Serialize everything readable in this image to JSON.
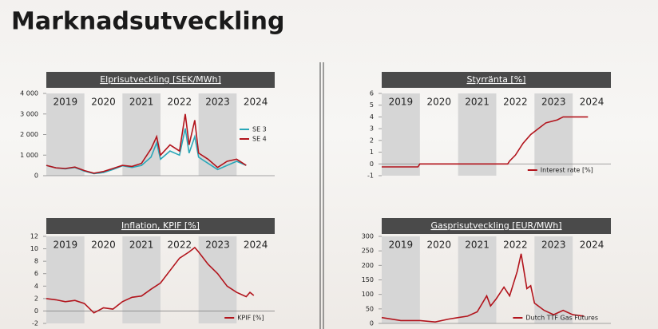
{
  "title": "Marknadsutveckling",
  "chart_data": [
    {
      "type": "line",
      "title": "Elprisutveckling [SEK/MWh]",
      "legend": "right",
      "categories": [
        "2019",
        "2020",
        "2021",
        "2022",
        "2023",
        "2024"
      ],
      "xlim": [
        2019,
        2025
      ],
      "ylim": [
        0,
        4000
      ],
      "yticks": [
        0,
        {
          "value": 1000,
          "label": "1 000"
        },
        {
          "value": 2000,
          "label": "2 000"
        },
        {
          "value": 3000,
          "label": "3 000"
        },
        {
          "value": 4000,
          "label": "4 000"
        }
      ],
      "series": [
        {
          "name": "SE 3",
          "color": "#2aa7b8",
          "x": [
            2019,
            2019.25,
            2019.5,
            2019.75,
            2020,
            2020.25,
            2020.5,
            2020.75,
            2021,
            2021.25,
            2021.5,
            2021.75,
            2021.9,
            2022,
            2022.25,
            2022.5,
            2022.65,
            2022.75,
            2022.9,
            2023,
            2023.25,
            2023.5,
            2023.75,
            2024,
            2024.25
          ],
          "values": [
            500,
            380,
            330,
            400,
            220,
            100,
            150,
            300,
            480,
            400,
            500,
            900,
            1600,
            800,
            1200,
            1000,
            2300,
            1100,
            1900,
            900,
            600,
            300,
            500,
            700,
            500
          ]
        },
        {
          "name": "SE 4",
          "color": "#b2141c",
          "x": [
            2019,
            2019.25,
            2019.5,
            2019.75,
            2020,
            2020.25,
            2020.5,
            2020.75,
            2021,
            2021.25,
            2021.5,
            2021.75,
            2021.9,
            2022,
            2022.25,
            2022.5,
            2022.65,
            2022.75,
            2022.9,
            2023,
            2023.25,
            2023.5,
            2023.75,
            2024,
            2024.25
          ],
          "values": [
            500,
            380,
            350,
            420,
            250,
            120,
            200,
            350,
            500,
            450,
            600,
            1300,
            1900,
            1000,
            1500,
            1200,
            3000,
            1500,
            2700,
            1100,
            800,
            400,
            700,
            800,
            500
          ]
        }
      ]
    },
    {
      "type": "line",
      "title": "Styrränta [%]",
      "legend": "lower right",
      "categories": [
        "2019",
        "2020",
        "2021",
        "2022",
        "2023",
        "2024"
      ],
      "xlim": [
        2019,
        2025
      ],
      "ylim": [
        -1,
        6
      ],
      "yticks": [
        -1,
        0,
        1,
        2,
        3,
        4,
        5,
        6
      ],
      "series": [
        {
          "name": "Interest rate [%]",
          "color": "#b2141c",
          "x": [
            2019,
            2019.95,
            2020,
            2022.3,
            2022.35,
            2022.5,
            2022.7,
            2022.9,
            2023.1,
            2023.3,
            2023.6,
            2023.75,
            2024.4
          ],
          "values": [
            -0.25,
            -0.25,
            0,
            0,
            0.25,
            0.75,
            1.75,
            2.5,
            3,
            3.5,
            3.75,
            4,
            4
          ]
        }
      ]
    },
    {
      "type": "line",
      "title": "Inflation, KPIF [%]",
      "legend": "lower right",
      "categories": [
        "2019",
        "2020",
        "2021",
        "2022",
        "2023",
        "2024"
      ],
      "xlim": [
        2019,
        2025
      ],
      "ylim": [
        -2,
        12
      ],
      "yticks": [
        -2,
        0,
        2,
        4,
        6,
        8,
        10,
        12
      ],
      "series": [
        {
          "name": "KPIF [%]",
          "color": "#b2141c",
          "x": [
            2019,
            2019.25,
            2019.5,
            2019.75,
            2020,
            2020.25,
            2020.5,
            2020.75,
            2021,
            2021.25,
            2021.5,
            2021.75,
            2022,
            2022.25,
            2022.5,
            2022.75,
            2022.9,
            2023,
            2023.25,
            2023.5,
            2023.75,
            2024,
            2024.25,
            2024.35,
            2024.45
          ],
          "values": [
            2.0,
            1.8,
            1.5,
            1.7,
            1.2,
            -0.3,
            0.5,
            0.3,
            1.5,
            2.2,
            2.4,
            3.5,
            4.5,
            6.5,
            8.5,
            9.5,
            10.2,
            9.5,
            7.5,
            6.0,
            4.0,
            3.0,
            2.3,
            3.0,
            2.5
          ]
        }
      ]
    },
    {
      "type": "line",
      "title": "Gasprisutveckling [EUR/MWh]",
      "legend": "lower right",
      "categories": [
        "2019",
        "2020",
        "2021",
        "2022",
        "2023",
        "2024"
      ],
      "xlim": [
        2019,
        2025
      ],
      "ylim": [
        0,
        300
      ],
      "yticks": [
        0,
        50,
        100,
        150,
        200,
        250,
        300
      ],
      "series": [
        {
          "name": "Dutch TTF Gas Futures",
          "color": "#b2141c",
          "x": [
            2019,
            2019.5,
            2020,
            2020.4,
            2020.75,
            2021,
            2021.25,
            2021.5,
            2021.75,
            2021.85,
            2022,
            2022.2,
            2022.35,
            2022.55,
            2022.65,
            2022.8,
            2022.9,
            2023,
            2023.25,
            2023.5,
            2023.75,
            2024,
            2024.3
          ],
          "values": [
            20,
            10,
            10,
            5,
            15,
            20,
            25,
            40,
            95,
            60,
            85,
            125,
            95,
            180,
            240,
            120,
            130,
            70,
            45,
            30,
            45,
            30,
            25
          ]
        }
      ]
    }
  ]
}
